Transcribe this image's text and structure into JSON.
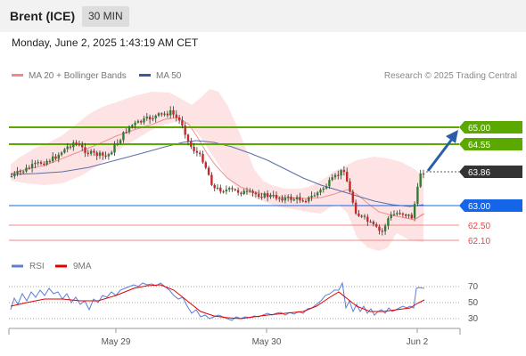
{
  "header": {
    "title": "Brent (ICE)",
    "timeframe": "30 MIN"
  },
  "datetime": "Monday, June 2, 2025 1:43:19 AM CET",
  "legend": {
    "items": [
      {
        "label": "MA 20 + Bollinger Bands",
        "color": "#f08a8a"
      },
      {
        "label": "MA 50",
        "color": "#3a5a9a"
      }
    ],
    "credit": "Research © 2025 Trading Central"
  },
  "levels": [
    {
      "value": "65.00",
      "type": "resistance",
      "color": "#5aa800"
    },
    {
      "value": "64.55",
      "type": "resistance",
      "color": "#5aa800"
    },
    {
      "value": "63.86",
      "type": "last",
      "color": "#333333"
    },
    {
      "value": "63.00",
      "type": "pivot",
      "color": "#1565e8"
    },
    {
      "value": "62.50",
      "type": "support",
      "color": "#e84848"
    },
    {
      "value": "62.10",
      "type": "support",
      "color": "#e84848"
    }
  ],
  "rsi": {
    "legend": [
      {
        "label": "RSI",
        "color": "#5b7fd6"
      },
      {
        "label": "9MA",
        "color": "#e00000"
      }
    ],
    "ticks": [
      "70",
      "50",
      "30"
    ]
  },
  "xaxis": [
    "May 29",
    "May 30",
    "Jun 2"
  ],
  "colors": {
    "up": "#2e7d32",
    "down": "#c62828",
    "band": "#fbd3d3"
  }
}
